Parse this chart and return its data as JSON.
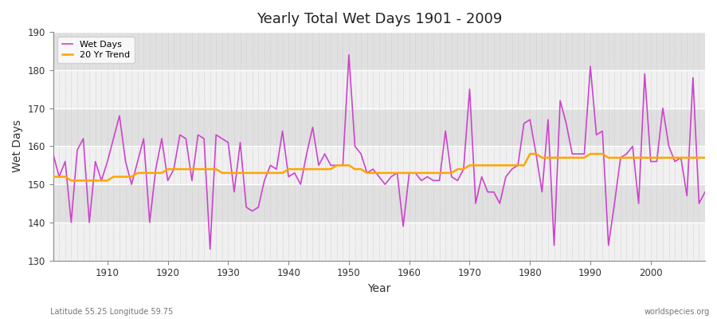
{
  "title": "Yearly Total Wet Days 1901 - 2009",
  "xlabel": "Year",
  "ylabel": "Wet Days",
  "subtitle": "Latitude 55.25 Longitude 59.75",
  "watermark": "worldspecies.org",
  "ylim": [
    130,
    190
  ],
  "xlim": [
    1901,
    2009
  ],
  "wet_days_color": "#CC44CC",
  "trend_color": "#FFA500",
  "background_color": "#FFFFFF",
  "plot_background_light": "#F0F0F0",
  "plot_background_dark": "#E0E0E0",
  "grid_color": "#CCCCCC",
  "years": [
    1901,
    1902,
    1903,
    1904,
    1905,
    1906,
    1907,
    1908,
    1909,
    1910,
    1911,
    1912,
    1913,
    1914,
    1915,
    1916,
    1917,
    1918,
    1919,
    1920,
    1921,
    1922,
    1923,
    1924,
    1925,
    1926,
    1927,
    1928,
    1929,
    1930,
    1931,
    1932,
    1933,
    1934,
    1935,
    1936,
    1937,
    1938,
    1939,
    1940,
    1941,
    1942,
    1943,
    1944,
    1945,
    1946,
    1947,
    1948,
    1949,
    1950,
    1951,
    1952,
    1953,
    1954,
    1955,
    1956,
    1957,
    1958,
    1959,
    1960,
    1961,
    1962,
    1963,
    1964,
    1965,
    1966,
    1967,
    1968,
    1969,
    1970,
    1971,
    1972,
    1973,
    1974,
    1975,
    1976,
    1977,
    1978,
    1979,
    1980,
    1981,
    1982,
    1983,
    1984,
    1985,
    1986,
    1987,
    1988,
    1989,
    1990,
    1991,
    1992,
    1993,
    1994,
    1995,
    1996,
    1997,
    1998,
    1999,
    2000,
    2001,
    2002,
    2003,
    2004,
    2005,
    2006,
    2007,
    2008,
    2009
  ],
  "wet_days": [
    158,
    152,
    156,
    140,
    159,
    162,
    140,
    156,
    151,
    156,
    162,
    168,
    156,
    150,
    156,
    162,
    140,
    154,
    162,
    151,
    154,
    163,
    162,
    151,
    163,
    162,
    133,
    163,
    162,
    161,
    148,
    161,
    144,
    143,
    144,
    151,
    155,
    154,
    164,
    152,
    153,
    150,
    158,
    165,
    155,
    158,
    155,
    155,
    155,
    184,
    160,
    158,
    153,
    154,
    152,
    150,
    152,
    153,
    139,
    153,
    153,
    151,
    152,
    151,
    151,
    164,
    152,
    151,
    154,
    175,
    145,
    152,
    148,
    148,
    145,
    152,
    154,
    155,
    166,
    167,
    158,
    148,
    167,
    134,
    172,
    166,
    158,
    158,
    158,
    181,
    163,
    164,
    134,
    145,
    157,
    158,
    160,
    145,
    179,
    156,
    156,
    170,
    160,
    156,
    157,
    147,
    178,
    145,
    148
  ],
  "trend": [
    152,
    152,
    152,
    151,
    151,
    151,
    151,
    151,
    151,
    151,
    152,
    152,
    152,
    152,
    153,
    153,
    153,
    153,
    153,
    154,
    154,
    154,
    154,
    154,
    154,
    154,
    154,
    154,
    153,
    153,
    153,
    153,
    153,
    153,
    153,
    153,
    153,
    153,
    153,
    154,
    154,
    154,
    154,
    154,
    154,
    154,
    154,
    155,
    155,
    155,
    154,
    154,
    153,
    153,
    153,
    153,
    153,
    153,
    153,
    153,
    153,
    153,
    153,
    153,
    153,
    153,
    153,
    154,
    154,
    155,
    155,
    155,
    155,
    155,
    155,
    155,
    155,
    155,
    155,
    158,
    158,
    157,
    157,
    157,
    157,
    157,
    157,
    157,
    157,
    158,
    158,
    158,
    157,
    157,
    157,
    157,
    157,
    157,
    157,
    157,
    157,
    157,
    157,
    157,
    157,
    157,
    157,
    157,
    157
  ]
}
